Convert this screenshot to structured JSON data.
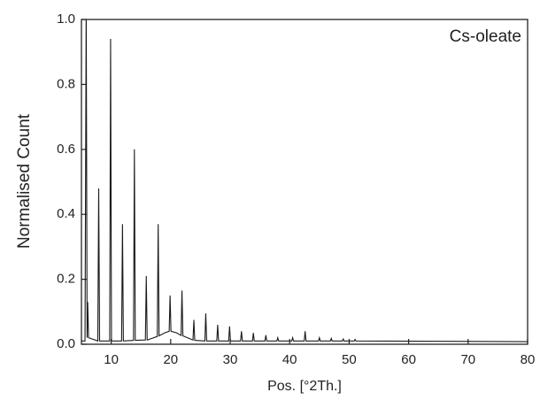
{
  "chart_data": {
    "type": "line",
    "annotation": "Cs-oleate",
    "x_label": "Pos. [°2Th.]",
    "y_label": "Normalised Count",
    "xlim": [
      5,
      80
    ],
    "ylim": [
      0,
      1
    ],
    "xticks": [
      10,
      20,
      30,
      40,
      50,
      60,
      70,
      80
    ],
    "yticks": [
      {
        "value": 0,
        "label": "0.0"
      },
      0.2,
      0.4,
      0.6,
      0.8,
      {
        "value": 1,
        "label": "1.0"
      }
    ],
    "series": [
      {
        "color": "#1a1a1a",
        "x": [
          5.0,
          5.6,
          5.8,
          5.95,
          6.05,
          6.2,
          7.75,
          7.9,
          8.05,
          9.75,
          9.9,
          10.05,
          11.75,
          11.9,
          12.05,
          13.75,
          13.9,
          14.05,
          15.75,
          15.9,
          16.05,
          17.75,
          17.9,
          18.05,
          19,
          19.75,
          19.9,
          20.05,
          21,
          21.75,
          21.9,
          22.05,
          23.75,
          23.9,
          24.05,
          25.75,
          25.9,
          26.05,
          27.75,
          27.9,
          28.05,
          29.75,
          29.9,
          30.05,
          31.75,
          31.9,
          32.05,
          33.75,
          33.9,
          34.05,
          35.85,
          36,
          36.15,
          37.85,
          38,
          38.15,
          40.35,
          40.5,
          40.65,
          42.45,
          42.6,
          42.75,
          44.85,
          45,
          45.15,
          46.85,
          47,
          47.15,
          48.85,
          49,
          49.15,
          50.85,
          51,
          51.15,
          80
        ],
        "values": [
          0.01,
          0.01,
          1.05,
          0.02,
          0.13,
          0.02,
          0.01,
          0.48,
          0.01,
          0.01,
          0.94,
          0.01,
          0.01,
          0.37,
          0.01,
          0.012,
          0.6,
          0.012,
          0.013,
          0.21,
          0.013,
          0.024,
          0.37,
          0.026,
          0.035,
          0.04,
          0.15,
          0.04,
          0.035,
          0.027,
          0.165,
          0.026,
          0.013,
          0.075,
          0.012,
          0.01,
          0.095,
          0.01,
          0.01,
          0.06,
          0.01,
          0.01,
          0.055,
          0.01,
          0.01,
          0.04,
          0.01,
          0.01,
          0.035,
          0.01,
          0.01,
          0.028,
          0.01,
          0.01,
          0.02,
          0.01,
          0.01,
          0.02,
          0.01,
          0.01,
          0.04,
          0.01,
          0.01,
          0.02,
          0.01,
          0.01,
          0.018,
          0.01,
          0.01,
          0.016,
          0.01,
          0.01,
          0.015,
          0.01,
          0.008
        ]
      }
    ]
  }
}
